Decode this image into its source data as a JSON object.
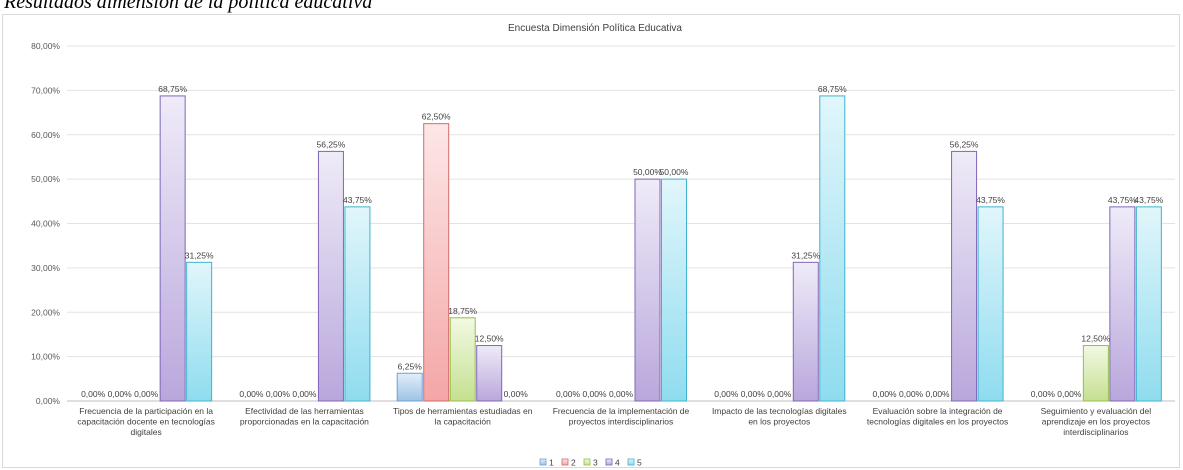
{
  "caption": "Resultados dimensión de la política educativa",
  "chart_data": {
    "type": "bar",
    "title": "Encuesta Dimensión Política Educativa",
    "xlabel": "",
    "ylabel": "",
    "ylim": [
      0,
      80
    ],
    "ytick_values": [
      0,
      10,
      20,
      30,
      40,
      50,
      60,
      70,
      80
    ],
    "ytick_labels": [
      "0,00%",
      "10,00%",
      "20,00%",
      "30,00%",
      "40,00%",
      "50,00%",
      "60,00%",
      "70,00%",
      "80,00%"
    ],
    "grid": true,
    "legend_position": "bottom",
    "categories": [
      [
        "Frecuencia de la participación en la",
        "capacitación docente en tecnologías",
        "digitales"
      ],
      [
        "Efectividad de las herramientas",
        "proporcionadas en la capacitación"
      ],
      [
        "Tipos de herramientas estudiadas en",
        "la capacitación"
      ],
      [
        "Frecuencia de la implementación de",
        "proyectos interdisciplinarios"
      ],
      [
        "Impacto de las tecnologías digitales",
        "en los proyectos"
      ],
      [
        "Evaluación sobre la integración de",
        "tecnologías digitales en los proyectos"
      ],
      [
        "Seguimiento y evaluación del",
        "aprendizaje en los proyectos",
        "interdisciplinarios"
      ]
    ],
    "series": [
      {
        "name": "1",
        "color": "#9dc3e6",
        "fill_light": "#e4eefa",
        "stroke": "#6f9fd8",
        "values": [
          0,
          0,
          6.25,
          0,
          0,
          0,
          0
        ],
        "labels": [
          "0,00%",
          "0,00%",
          "6,25%",
          "0,00%",
          "0,00%",
          "0,00%",
          "0,00%"
        ]
      },
      {
        "name": "2",
        "color": "#f4a6a6",
        "fill_light": "#fde7e7",
        "stroke": "#d46a6a",
        "values": [
          0,
          0,
          62.5,
          0,
          0,
          0,
          0
        ],
        "labels": [
          "0,00%",
          "0,00%",
          "62,50%",
          "0,00%",
          "0,00%",
          "0,00%",
          "0,00%"
        ]
      },
      {
        "name": "3",
        "color": "#c5e090",
        "fill_light": "#f2f9e4",
        "stroke": "#93c047",
        "values": [
          0,
          0,
          18.75,
          0,
          0,
          0,
          12.5
        ],
        "labels": [
          "0,00%",
          "0,00%",
          "18,75%",
          "0,00%",
          "0,00%",
          "0,00%",
          "12,50%"
        ]
      },
      {
        "name": "4",
        "color": "#b9a7dc",
        "fill_light": "#efebf8",
        "stroke": "#7f66b8",
        "values": [
          68.75,
          56.25,
          12.5,
          50,
          31.25,
          56.25,
          43.75
        ],
        "labels": [
          "68,75%",
          "56,25%",
          "12,50%",
          "50,00%",
          "31,25%",
          "56,25%",
          "43,75%"
        ]
      },
      {
        "name": "5",
        "color": "#8fdcef",
        "fill_light": "#e1f6fb",
        "stroke": "#3fb3cf",
        "values": [
          31.25,
          43.75,
          0,
          50,
          68.75,
          43.75,
          43.75
        ],
        "labels": [
          "31,25%",
          "43,75%",
          "0,00%",
          "50,00%",
          "68,75%",
          "43,75%",
          "43,75%"
        ]
      }
    ]
  }
}
